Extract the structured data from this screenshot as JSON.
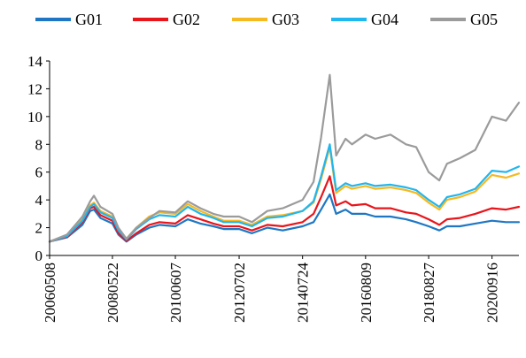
{
  "chart_data": {
    "type": "line",
    "title": "",
    "xlabel": "",
    "ylabel": "",
    "ylim": [
      0,
      14
    ],
    "yticks": [
      0,
      2,
      4,
      6,
      8,
      10,
      12,
      14
    ],
    "grid": false,
    "legend_position": "top",
    "x_tick_labels": [
      "20060508",
      "20080522",
      "20100607",
      "20120702",
      "20140724",
      "20160809",
      "20180827",
      "20200916"
    ],
    "x": [
      "20060508",
      "20061201",
      "20070601",
      "20070901",
      "20071016",
      "20080101",
      "20080522",
      "20080801",
      "20081104",
      "20090301",
      "20090801",
      "20091201",
      "20100607",
      "20101101",
      "20110401",
      "20110901",
      "20120101",
      "20120702",
      "20121201",
      "20130601",
      "20131201",
      "20140724",
      "20141201",
      "20150301",
      "20150612",
      "20150826",
      "20151215",
      "20160301",
      "20160809",
      "20161201",
      "20170601",
      "20171201",
      "20180401",
      "20180827",
      "20181231",
      "20190401",
      "20190901",
      "20200301",
      "20200916",
      "20210301",
      "20210801"
    ],
    "series": [
      {
        "name": "G01",
        "color": "#1f77c4",
        "values": [
          1.0,
          1.3,
          2.2,
          3.2,
          3.3,
          2.7,
          2.3,
          1.5,
          1.0,
          1.5,
          2.0,
          2.2,
          2.1,
          2.6,
          2.3,
          2.1,
          1.9,
          1.9,
          1.6,
          2.0,
          1.8,
          2.1,
          2.4,
          3.3,
          4.4,
          3.0,
          3.3,
          3.0,
          3.0,
          2.8,
          2.8,
          2.6,
          2.4,
          2.1,
          1.8,
          2.1,
          2.1,
          2.3,
          2.5,
          2.4,
          2.4
        ]
      },
      {
        "name": "G02",
        "color": "#e8151b",
        "values": [
          1.0,
          1.35,
          2.4,
          3.4,
          3.5,
          2.9,
          2.5,
          1.6,
          1.05,
          1.6,
          2.2,
          2.4,
          2.3,
          2.9,
          2.6,
          2.3,
          2.1,
          2.1,
          1.8,
          2.2,
          2.1,
          2.4,
          3.0,
          4.2,
          5.7,
          3.6,
          3.9,
          3.6,
          3.7,
          3.4,
          3.4,
          3.1,
          3.0,
          2.6,
          2.2,
          2.6,
          2.7,
          3.0,
          3.4,
          3.3,
          3.5
        ]
      },
      {
        "name": "G03",
        "color": "#f5b922",
        "values": [
          1.0,
          1.4,
          2.6,
          3.6,
          3.8,
          3.2,
          2.8,
          1.9,
          1.2,
          2.0,
          2.8,
          3.1,
          3.0,
          3.7,
          3.2,
          2.8,
          2.5,
          2.5,
          2.2,
          2.8,
          2.9,
          3.2,
          3.8,
          5.5,
          7.8,
          4.5,
          5.0,
          4.8,
          5.0,
          4.8,
          4.9,
          4.7,
          4.5,
          3.8,
          3.3,
          4.0,
          4.2,
          4.6,
          5.8,
          5.6,
          5.9
        ]
      },
      {
        "name": "G04",
        "color": "#20b6ee",
        "values": [
          1.0,
          1.4,
          2.5,
          3.5,
          3.7,
          3.1,
          2.7,
          1.8,
          1.15,
          1.9,
          2.6,
          2.9,
          2.8,
          3.5,
          3.0,
          2.7,
          2.4,
          2.4,
          2.1,
          2.7,
          2.8,
          3.2,
          3.9,
          5.7,
          8.0,
          4.7,
          5.2,
          5.0,
          5.2,
          5.0,
          5.1,
          4.9,
          4.7,
          4.0,
          3.5,
          4.2,
          4.4,
          4.8,
          6.1,
          6.0,
          6.4
        ]
      },
      {
        "name": "G05",
        "color": "#9b9b9b",
        "values": [
          1.0,
          1.5,
          2.8,
          3.9,
          4.3,
          3.5,
          3.0,
          2.0,
          1.2,
          2.0,
          2.7,
          3.2,
          3.1,
          3.9,
          3.4,
          3.0,
          2.8,
          2.8,
          2.4,
          3.2,
          3.4,
          4.0,
          5.3,
          8.5,
          13.0,
          7.2,
          8.4,
          8.0,
          8.7,
          8.4,
          8.7,
          8.0,
          7.8,
          6.0,
          5.4,
          6.6,
          7.0,
          7.6,
          10.0,
          9.7,
          11.0
        ]
      }
    ]
  }
}
